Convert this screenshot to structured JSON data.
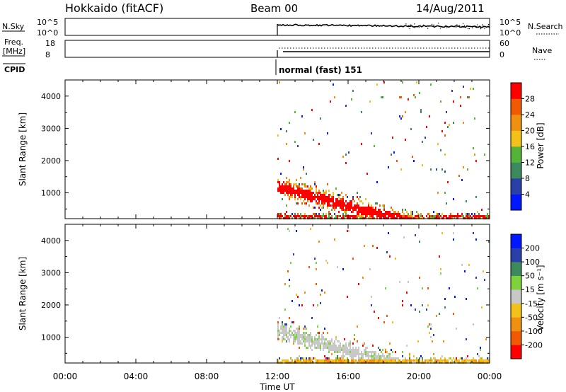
{
  "header": {
    "station": "Hokkaido (fitACF)",
    "beam": "Beam 00",
    "date": "14/Aug/2011"
  },
  "noise_panel": {
    "left_label": "N.Sky",
    "left_ticks": [
      "10^5",
      "10^0"
    ],
    "right_label": "N.Search",
    "right_ticks": [
      "10^5",
      "10^0"
    ]
  },
  "freq_panel": {
    "left_label_1": "Freq.",
    "left_label_2": "[MHz]",
    "left_ticks": [
      "18",
      "8"
    ],
    "right_label": "Nave",
    "right_ticks": [
      "60",
      "0"
    ]
  },
  "cpid": {
    "label": "CPID",
    "mode_text": "normal (fast) 151"
  },
  "colors": {
    "power": [
      "#0018ff",
      "#2a3fa8",
      "#3d8a5e",
      "#56b33a",
      "#f2c21b",
      "#f09010",
      "#f05a05",
      "#ff0000"
    ],
    "velocity": [
      "#ff0000",
      "#f05a05",
      "#f09010",
      "#f2c21b",
      "#c8c8c8",
      "#7ed23c",
      "#3d8a5e",
      "#2a3fa8",
      "#0018ff"
    ]
  },
  "chart_data": [
    {
      "type": "heatmap",
      "name": "power",
      "ylabel": "Slant Range [km]",
      "y_ticks": [
        "1000",
        "2000",
        "3000",
        "4000"
      ],
      "ylim": [
        200,
        4500
      ],
      "xlim": [
        0,
        24
      ],
      "colorbar": {
        "label": "Power [dB]",
        "ticks": [
          "4",
          "8",
          "12",
          "16",
          "20",
          "24",
          "28"
        ],
        "range": [
          0,
          32
        ]
      },
      "data_start_hour": 12
    },
    {
      "type": "heatmap",
      "name": "velocity",
      "ylabel": "Slant Range [km]",
      "y_ticks": [
        "1000",
        "2000",
        "3000",
        "4000"
      ],
      "ylim": [
        200,
        4500
      ],
      "xlim": [
        0,
        24
      ],
      "colorbar": {
        "label": "Velocity [m s⁻¹]",
        "ticks": [
          "-200",
          "-100",
          "-50",
          "-15",
          "15",
          "50",
          "100",
          "200"
        ]
      },
      "data_start_hour": 12
    }
  ],
  "x_axis": {
    "label": "Time UT",
    "ticks": [
      "00:00",
      "04:00",
      "08:00",
      "12:00",
      "16:00",
      "20:00",
      "00:00"
    ]
  }
}
